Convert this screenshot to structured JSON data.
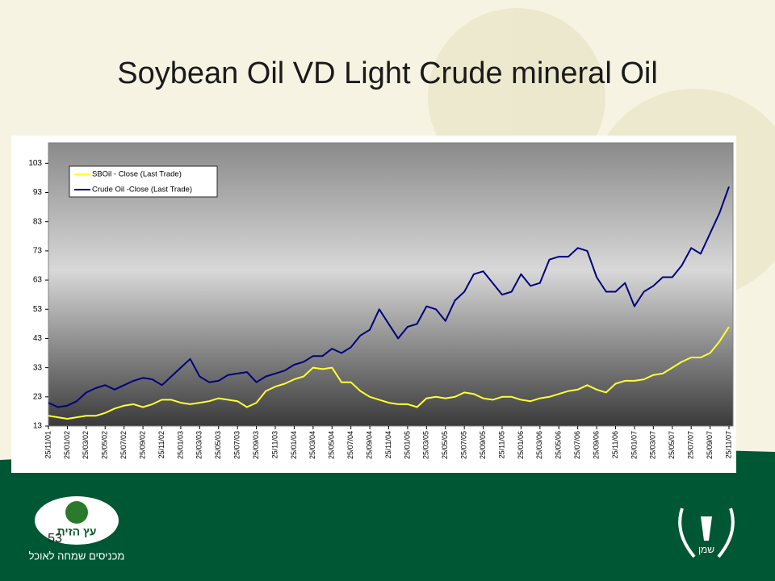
{
  "chart_data": {
    "type": "line",
    "title": "Soybean Oil VD Light Crude mineral Oil",
    "categories": [
      "25/11/01",
      null,
      "25/01/02",
      null,
      "25/03/02",
      null,
      "25/05/02",
      null,
      "25/07/02",
      null,
      "25/09/02",
      null,
      "25/11/02",
      null,
      "25/01/03",
      null,
      "25/03/03",
      null,
      "25/05/03",
      null,
      "25/07/03",
      null,
      "25/09/03",
      null,
      "25/11/03",
      null,
      "25/01/04",
      null,
      "25/03/04",
      null,
      "25/05/04",
      null,
      "25/07/04",
      null,
      "25/09/04",
      null,
      "25/11/04",
      null,
      "25/01/05",
      null,
      "25/03/05",
      null,
      "25/05/05",
      null,
      "25/07/05",
      null,
      "25/09/05",
      null,
      "25/11/05",
      null,
      "25/01/06",
      null,
      "25/03/06",
      null,
      "25/05/06",
      null,
      "25/07/06",
      null,
      "25/09/06",
      null,
      "25/11/06",
      null,
      "25/01/07",
      null,
      "25/03/07",
      null,
      "25/05/07",
      null,
      "25/07/07",
      null,
      "25/09/07",
      null,
      "25/11/07"
    ],
    "series": [
      {
        "name": "SBOil - Close (Last Trade)",
        "color": "#ffff33",
        "values": [
          16.5,
          16,
          15.5,
          16,
          16.5,
          16.5,
          17.5,
          19,
          20,
          20.5,
          19.5,
          20.5,
          22,
          22,
          21,
          20.5,
          21,
          21.5,
          22.5,
          22,
          21.5,
          19.5,
          21,
          25,
          26.5,
          27.5,
          29,
          30,
          33,
          32.5,
          33,
          28,
          28,
          25,
          23,
          22,
          21,
          20.5,
          20.5,
          19.5,
          22.5,
          23,
          22.5,
          23,
          24.5,
          24,
          22.5,
          22,
          23,
          23,
          22,
          21.5,
          22.5,
          23,
          24,
          25,
          25.5,
          27,
          25.5,
          24.5,
          27.5,
          28.5,
          28.5,
          29,
          30.5,
          31,
          33,
          35,
          36.5,
          36.5,
          38,
          42,
          47
        ]
      },
      {
        "name": "Crude Oil -Close (Last Trade)",
        "color": "#000080",
        "values": [
          21,
          19.5,
          20,
          21.5,
          24.5,
          26,
          27,
          25.5,
          27,
          28.5,
          29.5,
          29,
          27,
          30,
          33,
          36,
          30,
          28,
          28.5,
          30.5,
          31,
          31.5,
          28,
          30,
          31,
          32,
          34,
          35,
          37,
          37,
          39.5,
          38,
          40,
          44,
          46,
          53,
          48,
          43,
          47,
          48,
          54,
          53,
          49,
          56,
          59,
          65,
          66,
          62,
          58,
          59,
          65,
          61,
          62,
          70,
          71,
          71,
          74,
          73,
          64,
          59,
          59,
          62,
          54,
          59,
          61,
          64,
          64,
          68,
          74,
          72,
          79,
          86,
          95
        ]
      }
    ],
    "ylim": [
      13,
      110
    ],
    "yticks": [
      13,
      23,
      33,
      43,
      53,
      63,
      73,
      83,
      93,
      103
    ],
    "legend": "upper left",
    "grid": false
  },
  "footer": {
    "page_number": "53",
    "logo_left": {
      "name": "עץ הזית",
      "slogan": "מכניסים שמחה לאוכל"
    },
    "logo_right": {
      "name": "שמן"
    }
  }
}
